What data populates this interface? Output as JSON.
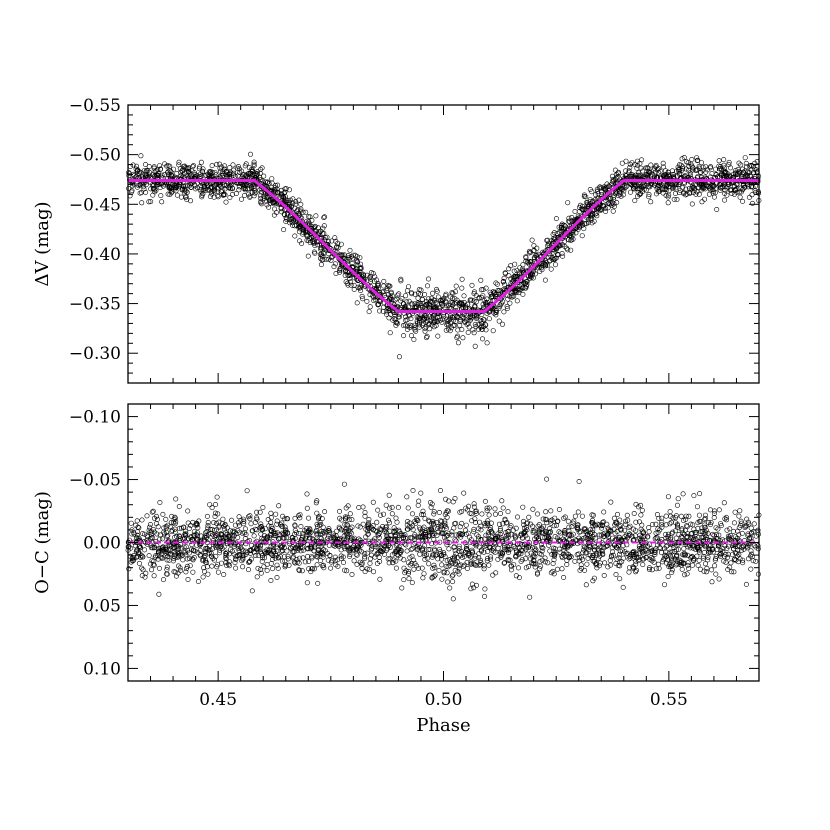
{
  "chart_data": [
    {
      "type": "scatter",
      "panel": "top",
      "xlim": [
        0.43,
        0.57
      ],
      "ylim": [
        -0.55,
        -0.27
      ],
      "y_inverted": true,
      "xticks": [
        0.45,
        0.5,
        0.55
      ],
      "yticks": [
        -0.55,
        -0.5,
        -0.45,
        -0.4,
        -0.35,
        -0.3
      ],
      "ytick_labels": [
        "−0.55",
        "−0.50",
        "−0.45",
        "−0.40",
        "−0.35",
        "−0.30"
      ],
      "ylabel": "ΔV (mag)",
      "xlabel": "",
      "point_color": "#000000",
      "model_color": "#e020e0",
      "model": {
        "baseline": -0.474,
        "depth_level": -0.342,
        "contacts": [
          0.458,
          0.49,
          0.509,
          0.54
        ]
      },
      "scatter_points_sigma": 0.009,
      "n_points": 2600
    },
    {
      "type": "scatter",
      "panel": "bottom",
      "xlim": [
        0.43,
        0.57
      ],
      "ylim": [
        -0.11,
        0.11
      ],
      "y_inverted": true,
      "xticks": [
        0.45,
        0.5,
        0.55
      ],
      "xtick_labels": [
        "0.45",
        "0.50",
        "0.55"
      ],
      "yticks": [
        -0.1,
        -0.05,
        0.0,
        0.05,
        0.1
      ],
      "ytick_labels": [
        "−0.10",
        "−0.05",
        "0.00",
        "0.05",
        "0.10"
      ],
      "ylabel": "O−C (mag)",
      "xlabel": "Phase",
      "point_color": "#000000",
      "zero_line_color": "#e020e0",
      "residual_sigma": 0.012,
      "n_points": 2600
    }
  ]
}
